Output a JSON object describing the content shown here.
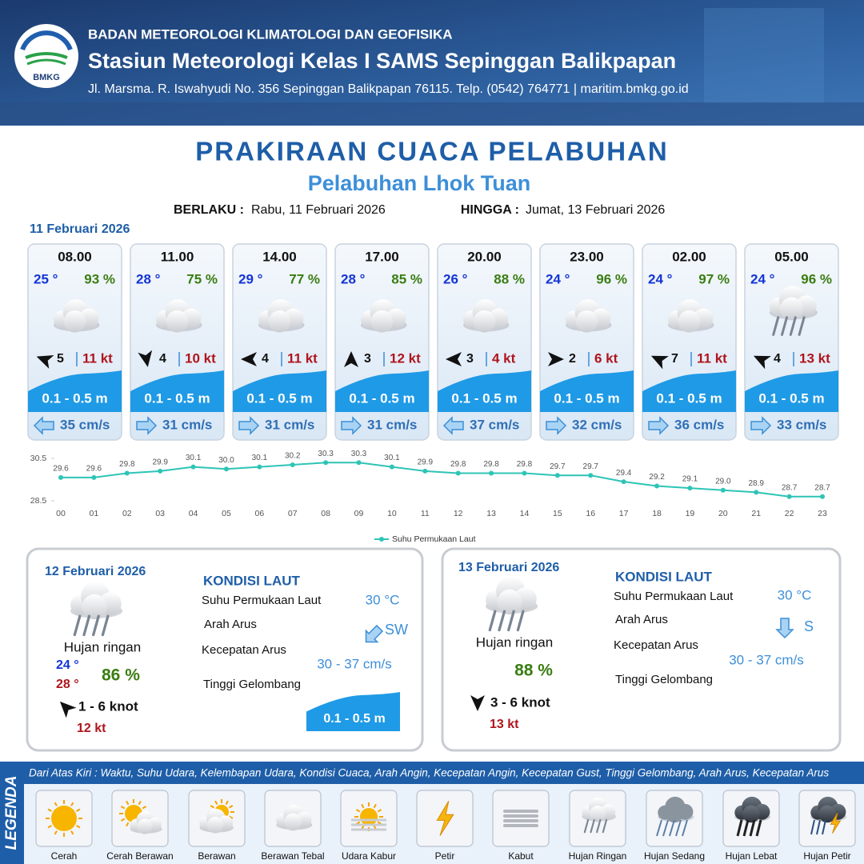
{
  "header": {
    "logo": "BMKG",
    "agency": "BADAN METEOROLOGI KLIMATOLOGI DAN GEOFISIKA",
    "station": "Stasiun Meteorologi Kelas I SAMS Sepinggan Balikpapan",
    "address": "Jl. Marsma. R. Iswahyudi No. 356 Sepinggan Balikpapan 76115. Telp. (0542) 764771 | maritim.bmkg.go.id"
  },
  "title": "PRAKIRAAN CUACA PELABUHAN",
  "subtitle": "Pelabuhan Lhok Tuan",
  "validity": {
    "from_label": "BERLAKU :",
    "from": "Rabu, 11 Februari 2026",
    "to_label": "HINGGA :",
    "to": "Jumat, 13 Februari 2026"
  },
  "today": {
    "date": "11 Februari 2026",
    "forecasts": [
      {
        "time": "08.00",
        "temperature": "25 °",
        "humidity": "93 %",
        "wind_speed": "5",
        "gust": "11 kt",
        "wave": "0.1 - 0.5 m",
        "current": "35 cm/s"
      },
      {
        "time": "11.00",
        "temperature": "28 °",
        "humidity": "75 %",
        "wind_speed": "4",
        "gust": "10 kt",
        "wave": "0.1 - 0.5 m",
        "current": "31 cm/s"
      },
      {
        "time": "14.00",
        "temperature": "29 °",
        "humidity": "77 %",
        "wind_speed": "4",
        "gust": "11 kt",
        "wave": "0.1 - 0.5 m",
        "current": "31 cm/s"
      },
      {
        "time": "17.00",
        "temperature": "28 °",
        "humidity": "85 %",
        "wind_speed": "3",
        "gust": "12 kt",
        "wave": "0.1 - 0.5 m",
        "current": "31 cm/s"
      },
      {
        "time": "20.00",
        "temperature": "26 °",
        "humidity": "88 %",
        "wind_speed": "3",
        "gust": "4 kt",
        "wave": "0.1 - 0.5 m",
        "current": "37 cm/s"
      },
      {
        "time": "23.00",
        "temperature": "24 °",
        "humidity": "96 %",
        "wind_speed": "2",
        "gust": "6 kt",
        "wave": "0.1 - 0.5 m",
        "current": "32 cm/s"
      },
      {
        "time": "02.00",
        "temperature": "24 °",
        "humidity": "97 %",
        "wind_speed": "7",
        "gust": "11 kt",
        "wave": "0.1 - 0.5 m",
        "current": "36 cm/s"
      },
      {
        "time": "05.00",
        "temperature": "24 °",
        "humidity": "96 %",
        "wind_speed": "4",
        "gust": "13 kt",
        "wave": "0.1 - 0.5 m",
        "current": "33 cm/s"
      }
    ]
  },
  "chart_data": {
    "type": "line",
    "categories": [
      "00",
      "01",
      "02",
      "03",
      "04",
      "05",
      "06",
      "07",
      "08",
      "09",
      "10",
      "11",
      "12",
      "13",
      "14",
      "15",
      "16",
      "17",
      "18",
      "19",
      "20",
      "21",
      "22",
      "23"
    ],
    "series": [
      {
        "name": "Suhu Permukaan Laut",
        "color": "#2ec4b6",
        "values": [
          29.6,
          29.6,
          29.8,
          29.9,
          30.1,
          30.0,
          30.1,
          30.2,
          30.3,
          30.3,
          30.1,
          29.9,
          29.8,
          29.8,
          29.8,
          29.7,
          29.7,
          29.4,
          29.2,
          29.1,
          29.0,
          28.9,
          28.7,
          28.7
        ],
        "value_labels": [
          "29.6",
          "29.6",
          "29.8",
          "29.9",
          "30.1",
          "30.0",
          "30.1",
          "30.2",
          "30.3",
          "30.3",
          "30.1",
          "29.9",
          "29.8",
          "29.8",
          "29.8",
          "29.7",
          "29.7",
          "29.4",
          "29.2",
          "29.1",
          "29.0",
          "28.9",
          "28.7",
          "28.7"
        ]
      }
    ],
    "ylim": [
      28.5,
      30.5
    ],
    "yticks": [
      28.5,
      30.5
    ],
    "legend": "bottom"
  },
  "day2": {
    "date": "12 Februari 2026",
    "condition": "Hujan ringan",
    "temp_min": "24 °",
    "temp_max": "28 °",
    "humidity": "86 %",
    "wind": "1 - 6 knot",
    "gust": "12 kt",
    "sea_title": "KONDISI LAUT",
    "sst_label": "Suhu Permukaan Laut",
    "current_dir_label": "Arah Arus",
    "current_speed_label": "Kecepatan Arus",
    "wave_label": "Tinggi Gelombang",
    "sst": "30 °C",
    "current_dir": "SW",
    "current_speed": "30  - 37 cm/s",
    "wave": "0.1 - 0.5 m"
  },
  "day3": {
    "date": "13 Februari 2026",
    "condition": "Hujan ringan",
    "humidity": "88 %",
    "wind": "3  - 6 knot",
    "gust": "13 kt",
    "sea_title": "KONDISI LAUT",
    "sst_label": "Suhu Permukaan Laut",
    "current_dir_label": "Arah Arus",
    "current_speed_label": "Kecepatan Arus",
    "wave_label": "Tinggi Gelombang",
    "sst": "30 °C",
    "current_dir": "S",
    "current_speed": "30  - 37 cm/s"
  },
  "legend": {
    "title": "LEGENDA",
    "description": "Dari Atas Kiri : Waktu, Suhu Udara, Kelembapan Udara, Kondisi Cuaca, Arah Angin, Kecepatan Angin, Kecepatan Gust, Tinggi Gelombang, Arah Arus, Kecepatan Arus",
    "items": [
      "Cerah",
      "Cerah Berawan",
      "Berawan",
      "Berawan Tebal",
      "Udara Kabur",
      "Petir",
      "Kabut",
      "Hujan Ringan",
      "Hujan Sedang",
      "Hujan Lebat",
      "Hujan Petir"
    ]
  }
}
